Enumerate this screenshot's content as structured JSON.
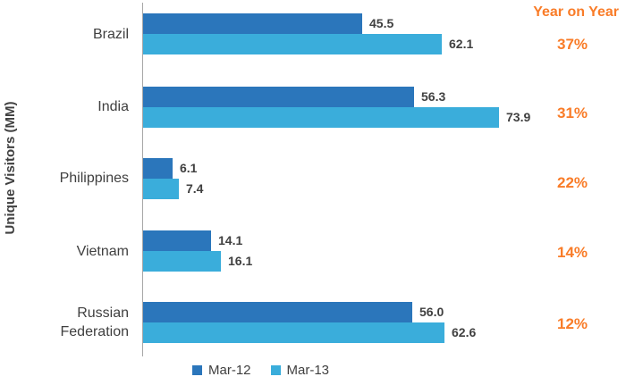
{
  "colors": {
    "text": "#404040",
    "axis": "#A6A6A6",
    "accent_orange": "#F97C28",
    "series_mar12": "#2B76BB",
    "series_mar13": "#3AADDB"
  },
  "chart_data": {
    "type": "bar",
    "orientation": "horizontal",
    "y_axis_title": "Unique Visitors (MM)",
    "xlabel": "",
    "xlim": [
      0,
      80
    ],
    "grid": false,
    "legend_position": "bottom",
    "value_labels_shown": true,
    "categories": [
      "Brazil",
      "India",
      "Philippines",
      "Vietnam",
      "Russian Federation"
    ],
    "series": [
      {
        "name": "Mar-12",
        "color": "#2B76BB",
        "values": [
          45.5,
          56.3,
          6.1,
          14.1,
          56.0
        ],
        "labels": [
          "45.5",
          "56.3",
          "6.1",
          "14.1",
          "56.0"
        ]
      },
      {
        "name": "Mar-13",
        "color": "#3AADDB",
        "values": [
          62.1,
          73.9,
          7.4,
          16.1,
          62.6
        ],
        "labels": [
          "62.1",
          "73.9",
          "7.4",
          "16.1",
          "62.6"
        ]
      }
    ],
    "yoy": {
      "header": "Year on Year",
      "color": "#F97C28",
      "values": [
        "37%",
        "31%",
        "22%",
        "14%",
        "12%"
      ]
    }
  }
}
